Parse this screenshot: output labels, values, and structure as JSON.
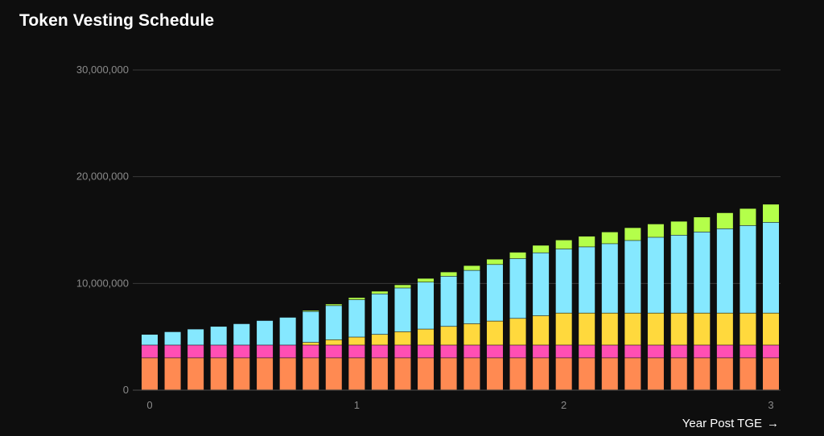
{
  "title": "Token Vesting Schedule",
  "xaxis_label": "Year Post TGE",
  "xaxis_arrow_icon": "arrow-right-icon",
  "chart_data": {
    "type": "bar",
    "stacked": true,
    "title": "Token Vesting Schedule",
    "xlabel": "Year Post TGE",
    "ylabel": "",
    "ylim": [
      0,
      30000000
    ],
    "yticks": [
      0,
      10000000,
      20000000,
      30000000
    ],
    "ytick_labels": [
      "0",
      "10,000,000",
      "20,000,000",
      "30,000,000"
    ],
    "xlim": [
      0,
      3
    ],
    "xticks": [
      0,
      1,
      2,
      3
    ],
    "xtick_labels": [
      "0",
      "1",
      "2",
      "3"
    ],
    "grid": true,
    "legend": false,
    "x": [
      0.0,
      0.111,
      0.222,
      0.333,
      0.444,
      0.556,
      0.667,
      0.778,
      0.889,
      1.0,
      1.111,
      1.222,
      1.333,
      1.444,
      1.556,
      1.667,
      1.778,
      1.889,
      2.0,
      2.111,
      2.222,
      2.333,
      2.444,
      2.556,
      2.667,
      2.778,
      2.889,
      3.0
    ],
    "series": [
      {
        "color": "#ff8a52",
        "values": [
          3000000,
          3000000,
          3000000,
          3000000,
          3000000,
          3000000,
          3000000,
          3000000,
          3000000,
          3000000,
          3000000,
          3000000,
          3000000,
          3000000,
          3000000,
          3000000,
          3000000,
          3000000,
          3000000,
          3000000,
          3000000,
          3000000,
          3000000,
          3000000,
          3000000,
          3000000,
          3000000,
          3000000
        ]
      },
      {
        "color": "#ff4fb4",
        "values": [
          1200000,
          1200000,
          1200000,
          1200000,
          1200000,
          1200000,
          1200000,
          1200000,
          1200000,
          1200000,
          1200000,
          1200000,
          1200000,
          1200000,
          1200000,
          1200000,
          1200000,
          1200000,
          1200000,
          1200000,
          1200000,
          1200000,
          1200000,
          1200000,
          1200000,
          1200000,
          1200000,
          1200000
        ]
      },
      {
        "color": "#ffd93d",
        "values": [
          0,
          0,
          0,
          0,
          0,
          0,
          0,
          250000,
          500000,
          750000,
          1000000,
          1250000,
          1500000,
          1750000,
          2000000,
          2250000,
          2500000,
          2750000,
          3000000,
          3000000,
          3000000,
          3000000,
          3000000,
          3000000,
          3000000,
          3000000,
          3000000,
          3000000
        ]
      },
      {
        "color": "#85e8ff",
        "values": [
          1000000,
          1250000,
          1500000,
          1750000,
          2000000,
          2300000,
          2600000,
          2900000,
          3200000,
          3500000,
          3800000,
          4100000,
          4400000,
          4700000,
          5000000,
          5300000,
          5600000,
          5900000,
          6000000,
          6200000,
          6500000,
          6800000,
          7100000,
          7300000,
          7600000,
          7900000,
          8200000,
          8500000
        ]
      },
      {
        "color": "#b4ff4a",
        "values": [
          0,
          0,
          0,
          0,
          0,
          0,
          0,
          100000,
          150000,
          200000,
          250000,
          300000,
          350000,
          400000,
          450000,
          500000,
          600000,
          700000,
          850000,
          1000000,
          1100000,
          1200000,
          1250000,
          1300000,
          1400000,
          1500000,
          1600000,
          1700000
        ]
      }
    ]
  }
}
